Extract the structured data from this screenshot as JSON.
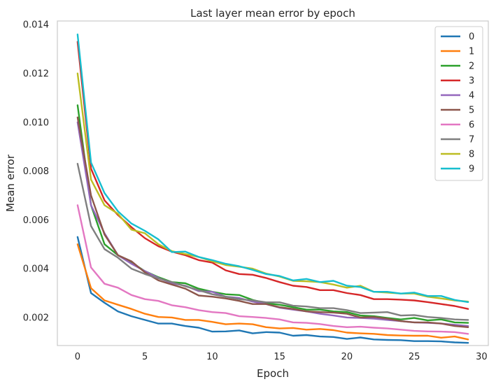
{
  "chart_data": {
    "type": "line",
    "title": "Last layer mean error by epoch",
    "xlabel": "Epoch",
    "ylabel": "Mean error",
    "xlim": [
      -1.5,
      30.5
    ],
    "ylim": [
      0.00085,
      0.01415
    ],
    "xticks": [
      0,
      5,
      10,
      15,
      20,
      25,
      30
    ],
    "yticks": [
      0.002,
      0.004,
      0.006,
      0.008,
      0.01,
      0.012,
      0.014
    ],
    "ytick_labels": [
      "0.002",
      "0.004",
      "0.006",
      "0.008",
      "0.010",
      "0.012",
      "0.014"
    ],
    "grid": false,
    "legend_position": "top-right",
    "x": [
      0,
      1,
      2,
      3,
      4,
      5,
      6,
      7,
      8,
      9,
      10,
      11,
      12,
      13,
      14,
      15,
      16,
      17,
      18,
      19,
      20,
      21,
      22,
      23,
      24,
      25,
      26,
      27,
      28,
      29
    ],
    "series": [
      {
        "name": "0",
        "color": "#1f77b4",
        "values": [
          0.0053,
          0.003,
          0.0026,
          0.00225,
          0.00205,
          0.0019,
          0.00175,
          0.00175,
          0.00165,
          0.00158,
          0.00142,
          0.00143,
          0.00147,
          0.00135,
          0.0014,
          0.00138,
          0.00125,
          0.00128,
          0.00122,
          0.0012,
          0.00112,
          0.00118,
          0.0011,
          0.00108,
          0.00107,
          0.00103,
          0.00103,
          0.00102,
          0.00098,
          0.00096
        ]
      },
      {
        "name": "1",
        "color": "#ff7f0e",
        "values": [
          0.005,
          0.0032,
          0.0027,
          0.00252,
          0.00235,
          0.00215,
          0.00202,
          0.002,
          0.0019,
          0.0019,
          0.00182,
          0.00172,
          0.00175,
          0.00172,
          0.0016,
          0.00155,
          0.00157,
          0.0015,
          0.00153,
          0.00148,
          0.00138,
          0.00135,
          0.00133,
          0.00128,
          0.00126,
          0.00125,
          0.00125,
          0.00117,
          0.00122,
          0.0011
        ]
      },
      {
        "name": "2",
        "color": "#2ca02c",
        "values": [
          0.0107,
          0.0066,
          0.005,
          0.00455,
          0.00425,
          0.0039,
          0.00365,
          0.00345,
          0.0034,
          0.00318,
          0.00305,
          0.00295,
          0.00292,
          0.00272,
          0.00258,
          0.00252,
          0.00242,
          0.00232,
          0.00232,
          0.00225,
          0.00222,
          0.00208,
          0.00205,
          0.00198,
          0.00192,
          0.00198,
          0.00188,
          0.00192,
          0.0018,
          0.00178
        ]
      },
      {
        "name": "3",
        "color": "#d62728",
        "values": [
          0.0133,
          0.0081,
          0.0068,
          0.0062,
          0.0057,
          0.00525,
          0.00492,
          0.0047,
          0.00455,
          0.00435,
          0.00425,
          0.00393,
          0.00378,
          0.00375,
          0.00362,
          0.00345,
          0.0033,
          0.00325,
          0.00312,
          0.00312,
          0.003,
          0.00292,
          0.00275,
          0.00275,
          0.00273,
          0.0027,
          0.00263,
          0.00255,
          0.00247,
          0.00235
        ]
      },
      {
        "name": "4",
        "color": "#9467bd",
        "values": [
          0.01,
          0.0066,
          0.00545,
          0.00455,
          0.0042,
          0.0039,
          0.00362,
          0.0034,
          0.0033,
          0.00308,
          0.00305,
          0.00285,
          0.0028,
          0.00265,
          0.00255,
          0.0024,
          0.00232,
          0.00225,
          0.00215,
          0.00208,
          0.002,
          0.00198,
          0.00195,
          0.0019,
          0.00185,
          0.0018,
          0.00178,
          0.00175,
          0.0017,
          0.00165
        ]
      },
      {
        "name": "5",
        "color": "#8c564b",
        "values": [
          0.0102,
          0.007,
          0.0054,
          0.00455,
          0.0043,
          0.00385,
          0.00352,
          0.00335,
          0.00318,
          0.0029,
          0.00285,
          0.00278,
          0.00268,
          0.00255,
          0.00255,
          0.00242,
          0.00235,
          0.00225,
          0.00222,
          0.0022,
          0.00215,
          0.002,
          0.00202,
          0.00195,
          0.00185,
          0.0018,
          0.0018,
          0.00175,
          0.00165,
          0.0016
        ]
      },
      {
        "name": "6",
        "color": "#e377c2",
        "values": [
          0.0066,
          0.00405,
          0.00338,
          0.00322,
          0.00292,
          0.00275,
          0.00268,
          0.0025,
          0.00242,
          0.0023,
          0.00222,
          0.00218,
          0.00205,
          0.00202,
          0.00198,
          0.00192,
          0.0018,
          0.00178,
          0.00173,
          0.00165,
          0.0016,
          0.00162,
          0.00158,
          0.00155,
          0.0015,
          0.00145,
          0.00143,
          0.00142,
          0.0014,
          0.00133
        ]
      },
      {
        "name": "7",
        "color": "#7f7f7f",
        "values": [
          0.0083,
          0.00575,
          0.0048,
          0.00445,
          0.004,
          0.00378,
          0.0036,
          0.00345,
          0.00328,
          0.00312,
          0.00295,
          0.00285,
          0.00275,
          0.0027,
          0.00262,
          0.00262,
          0.00248,
          0.00245,
          0.00238,
          0.00238,
          0.0023,
          0.00218,
          0.0022,
          0.00222,
          0.00208,
          0.0021,
          0.00202,
          0.00198,
          0.00192,
          0.0019
        ]
      },
      {
        "name": "8",
        "color": "#bcbd22",
        "values": [
          0.012,
          0.00765,
          0.0066,
          0.00625,
          0.0056,
          0.00545,
          0.005,
          0.00472,
          0.0046,
          0.00448,
          0.0043,
          0.00415,
          0.00408,
          0.004,
          0.0038,
          0.00368,
          0.0035,
          0.00348,
          0.00345,
          0.00335,
          0.00322,
          0.0033,
          0.00305,
          0.00302,
          0.00298,
          0.00298,
          0.00285,
          0.00278,
          0.0027,
          0.00265
        ]
      },
      {
        "name": "9",
        "color": "#17becf",
        "values": [
          0.0136,
          0.00835,
          0.0071,
          0.00635,
          0.00585,
          0.00555,
          0.0052,
          0.00468,
          0.0047,
          0.00448,
          0.00435,
          0.0042,
          0.0041,
          0.00395,
          0.00378,
          0.0037,
          0.00352,
          0.00358,
          0.00345,
          0.0035,
          0.0033,
          0.00325,
          0.00305,
          0.00305,
          0.00298,
          0.00302,
          0.00288,
          0.00288,
          0.00272,
          0.00263
        ]
      }
    ]
  }
}
